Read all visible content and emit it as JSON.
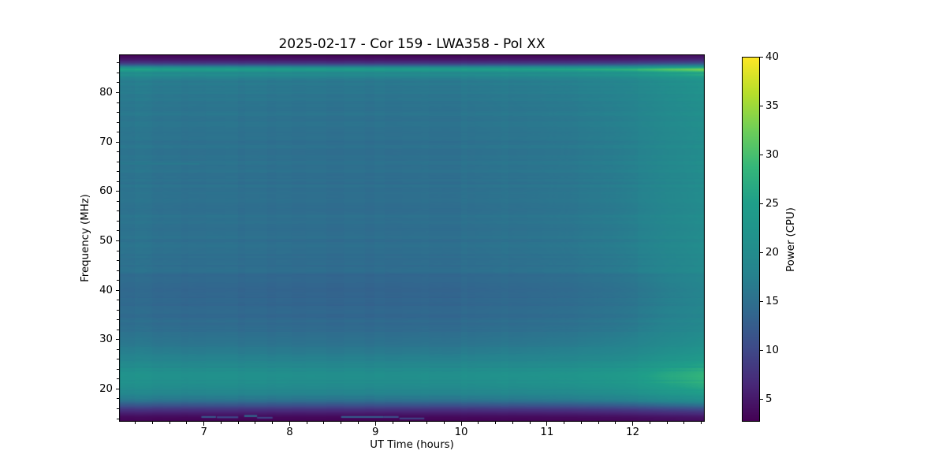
{
  "chart_data": {
    "type": "heatmap",
    "title": "2025-02-17 - Cor 159 - LWA358 - Pol XX",
    "xlabel": "UT Time (hours)",
    "ylabel": "Frequency (MHz)",
    "colorbar_label": "Power (CPU)",
    "x_range": [
      6.01,
      12.84
    ],
    "y_range": [
      13.37,
      87.74
    ],
    "clim": [
      2.7,
      40
    ],
    "x_ticks": [
      7,
      8,
      9,
      10,
      11,
      12
    ],
    "x_minor_step": 0.2,
    "y_ticks": [
      20,
      30,
      40,
      50,
      60,
      70,
      80
    ],
    "y_minor_step": 2,
    "colorbar_ticks": [
      5,
      10,
      15,
      20,
      25,
      30,
      35,
      40
    ],
    "colormap": "viridis",
    "colormap_stops": [
      "#440154",
      "#482878",
      "#3e4a89",
      "#31688e",
      "#26828e",
      "#21918c",
      "#1f9e89",
      "#35b779",
      "#6ece58",
      "#b5de2b",
      "#fde725"
    ],
    "grid": false,
    "legend": "colorbar-right",
    "background": "#ffffff",
    "text_color": "#000000",
    "spectrum_profile": [
      [
        13.3,
        3.0
      ],
      [
        13.8,
        3.1
      ],
      [
        14.3,
        3.6
      ],
      [
        15.0,
        5.0
      ],
      [
        15.8,
        7.5
      ],
      [
        16.5,
        10.5
      ],
      [
        17.2,
        13.5
      ],
      [
        18.0,
        16.0
      ],
      [
        19.0,
        18.2
      ],
      [
        20.0,
        19.6
      ],
      [
        21.0,
        20.6
      ],
      [
        22.0,
        21.2
      ],
      [
        23.0,
        21.0
      ],
      [
        24.0,
        20.2
      ],
      [
        25.0,
        19.0
      ],
      [
        26.0,
        17.8
      ],
      [
        27.5,
        16.6
      ],
      [
        29.0,
        15.8
      ],
      [
        31.0,
        15.0
      ],
      [
        33.0,
        14.4
      ],
      [
        35.0,
        14.1
      ],
      [
        37.0,
        13.9
      ],
      [
        39.0,
        13.8
      ],
      [
        41.0,
        13.9
      ],
      [
        43.0,
        14.0
      ],
      [
        43.8,
        14.8
      ],
      [
        45.0,
        14.7
      ],
      [
        47.0,
        14.8
      ],
      [
        49.0,
        15.0
      ],
      [
        51.0,
        15.1
      ],
      [
        53.0,
        15.0
      ],
      [
        55.0,
        15.2
      ],
      [
        57.0,
        15.1
      ],
      [
        59.0,
        15.3
      ],
      [
        61.0,
        15.1
      ],
      [
        63.0,
        15.2
      ],
      [
        65.0,
        15.4
      ],
      [
        67.0,
        15.3
      ],
      [
        69.0,
        15.4
      ],
      [
        71.0,
        15.2
      ],
      [
        73.0,
        15.4
      ],
      [
        75.0,
        15.7
      ],
      [
        77.0,
        15.9
      ],
      [
        79.0,
        16.1
      ],
      [
        81.0,
        16.3
      ],
      [
        82.5,
        16.8
      ],
      [
        83.2,
        19.0
      ],
      [
        83.6,
        21.0
      ],
      [
        84.0,
        19.5
      ],
      [
        84.4,
        23.0
      ],
      [
        84.7,
        25.5
      ],
      [
        85.1,
        20.0
      ],
      [
        85.5,
        13.0
      ],
      [
        86.0,
        8.0
      ],
      [
        86.6,
        5.0
      ],
      [
        87.2,
        3.5
      ],
      [
        87.74,
        3.0
      ]
    ],
    "time_brightness": [
      [
        0.0,
        1.045
      ],
      [
        0.07,
        1.01
      ],
      [
        0.15,
        0.995
      ],
      [
        0.3,
        0.985
      ],
      [
        0.45,
        0.98
      ],
      [
        0.6,
        0.995
      ],
      [
        0.72,
        1.03
      ],
      [
        0.82,
        1.09
      ],
      [
        0.9,
        1.17
      ],
      [
        0.96,
        1.27
      ],
      [
        1.0,
        1.33
      ]
    ],
    "rfi_segments": [
      [
        6.97,
        7.14,
        14.35,
        12
      ],
      [
        7.15,
        7.4,
        14.3,
        10
      ],
      [
        7.47,
        7.62,
        14.55,
        14.5
      ],
      [
        7.62,
        7.8,
        14.2,
        9.5
      ],
      [
        8.6,
        9.09,
        14.35,
        12.5
      ],
      [
        9.09,
        9.27,
        14.35,
        11
      ],
      [
        9.28,
        9.57,
        14.05,
        9.5
      ],
      [
        6.03,
        6.95,
        65.6,
        16.3
      ]
    ]
  }
}
